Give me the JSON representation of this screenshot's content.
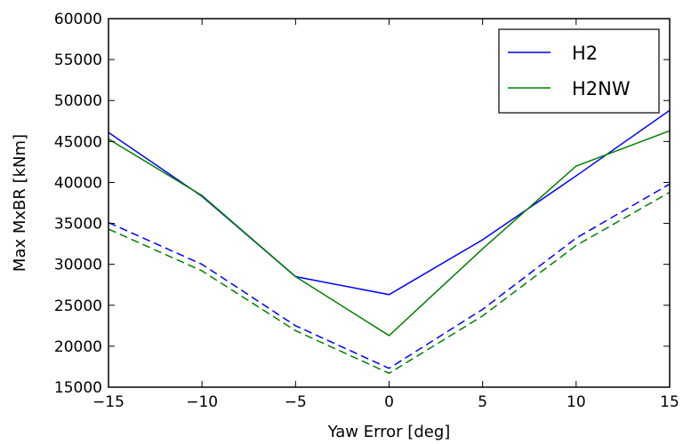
{
  "chart_data": {
    "type": "line",
    "xlabel": "Yaw Error [deg]",
    "ylabel": "Max MxBR [kNm]",
    "xlim": [
      -15,
      15
    ],
    "ylim": [
      15000,
      60000
    ],
    "xticks": [
      -15,
      -10,
      -5,
      0,
      5,
      10,
      15
    ],
    "xtick_labels": [
      "−15",
      "−10",
      "−5",
      "0",
      "5",
      "10",
      "15"
    ],
    "yticks": [
      15000,
      20000,
      25000,
      30000,
      35000,
      40000,
      45000,
      50000,
      55000,
      60000
    ],
    "ytick_labels": [
      "15000",
      "20000",
      "25000",
      "30000",
      "35000",
      "40000",
      "45000",
      "50000",
      "55000",
      "60000"
    ],
    "grid": false,
    "legend_position": "top-right",
    "x": [
      -15,
      -10,
      -5,
      0,
      5,
      10,
      15
    ],
    "series": [
      {
        "name": "H2",
        "color": "#0000ff",
        "style": "solid",
        "values": [
          46100,
          38300,
          28500,
          26300,
          33000,
          40800,
          48800
        ]
      },
      {
        "name": "H2NW",
        "color": "#008000",
        "style": "solid",
        "values": [
          45300,
          38400,
          28500,
          21300,
          31900,
          42000,
          46300
        ]
      },
      {
        "color": "#0000ff",
        "style": "dashed",
        "values": [
          35100,
          30000,
          22500,
          17300,
          24500,
          33200,
          39800
        ]
      },
      {
        "color": "#008000",
        "style": "dashed",
        "values": [
          34300,
          29200,
          21900,
          16700,
          23700,
          32300,
          38800
        ]
      }
    ]
  }
}
